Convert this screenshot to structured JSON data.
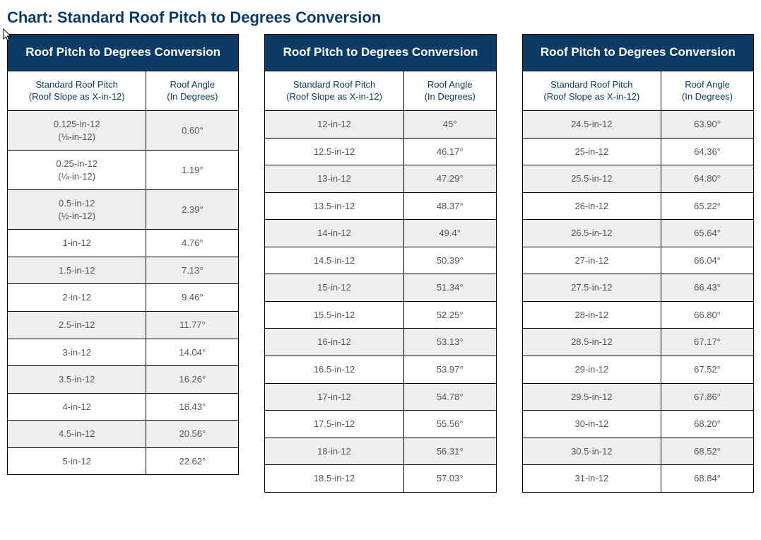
{
  "page": {
    "title": "Chart: Standard Roof Pitch to Degrees Conversion"
  },
  "colors": {
    "header_bg": "#0d3b66",
    "header_fg": "#ffffff",
    "title_fg": "#0d3b66",
    "border": "#000000",
    "row_odd": "#eeeeee",
    "row_even": "#ffffff",
    "text": "#555555"
  },
  "tables": {
    "common_header_title": "Roof Pitch to Degrees Conversion",
    "col1_label_line1": "Standard Roof Pitch",
    "col1_label_line2": "(Roof Slope as X-in-12)",
    "col2_label_line1": "Roof Angle",
    "col2_label_line2": "(In Degrees)",
    "t1": {
      "rows": [
        {
          "pitch": "0.125-in-12\n(⅛-in-12)",
          "angle": "0.60°"
        },
        {
          "pitch": "0.25-in-12\n(¼-in-12)",
          "angle": "1.19°"
        },
        {
          "pitch": "0.5-in-12\n(½-in-12)",
          "angle": "2.39°"
        },
        {
          "pitch": "1-in-12",
          "angle": "4.76°"
        },
        {
          "pitch": "1.5-in-12",
          "angle": "7.13°"
        },
        {
          "pitch": "2-in-12",
          "angle": "9.46°"
        },
        {
          "pitch": "2.5-in-12",
          "angle": "11.77°"
        },
        {
          "pitch": "3-in-12",
          "angle": "14.04°"
        },
        {
          "pitch": "3.5-in-12",
          "angle": "16.26°"
        },
        {
          "pitch": "4-in-12",
          "angle": "18.43°"
        },
        {
          "pitch": "4.5-in-12",
          "angle": "20.56°"
        },
        {
          "pitch": "5-in-12",
          "angle": "22.62°"
        }
      ]
    },
    "t2": {
      "rows": [
        {
          "pitch": "12-in-12",
          "angle": "45°"
        },
        {
          "pitch": "12.5-in-12",
          "angle": "46.17°"
        },
        {
          "pitch": "13-in-12",
          "angle": "47.29°"
        },
        {
          "pitch": "13.5-in-12",
          "angle": "48.37°"
        },
        {
          "pitch": "14-in-12",
          "angle": "49.4°"
        },
        {
          "pitch": "14.5-in-12",
          "angle": "50.39°"
        },
        {
          "pitch": "15-in-12",
          "angle": "51.34°"
        },
        {
          "pitch": "15.5-in-12",
          "angle": "52.25°"
        },
        {
          "pitch": "16-in-12",
          "angle": "53.13°"
        },
        {
          "pitch": "16.5-in-12",
          "angle": "53.97°"
        },
        {
          "pitch": "17-in-12",
          "angle": "54.78°"
        },
        {
          "pitch": "17.5-in-12",
          "angle": "55.56°"
        },
        {
          "pitch": "18-in-12",
          "angle": "56.31°"
        },
        {
          "pitch": "18.5-in-12",
          "angle": "57.03°"
        }
      ]
    },
    "t3": {
      "rows": [
        {
          "pitch": "24.5-in-12",
          "angle": "63.90°"
        },
        {
          "pitch": "25-in-12",
          "angle": "64.36°"
        },
        {
          "pitch": "25.5-in-12",
          "angle": "64.80°"
        },
        {
          "pitch": "26-in-12",
          "angle": "65.22°"
        },
        {
          "pitch": "26.5-in-12",
          "angle": "65.64°"
        },
        {
          "pitch": "27-in-12",
          "angle": "66.04°"
        },
        {
          "pitch": "27.5-in-12",
          "angle": "66.43°"
        },
        {
          "pitch": "28-in-12",
          "angle": "66.80°"
        },
        {
          "pitch": "28.5-in-12",
          "angle": "67.17°"
        },
        {
          "pitch": "29-in-12",
          "angle": "67.52°"
        },
        {
          "pitch": "29.5-in-12",
          "angle": "67.86°"
        },
        {
          "pitch": "30-in-12",
          "angle": "68.20°"
        },
        {
          "pitch": "30.5-in-12",
          "angle": "68.52°"
        },
        {
          "pitch": "31-in-12",
          "angle": "68.84°"
        }
      ]
    }
  }
}
